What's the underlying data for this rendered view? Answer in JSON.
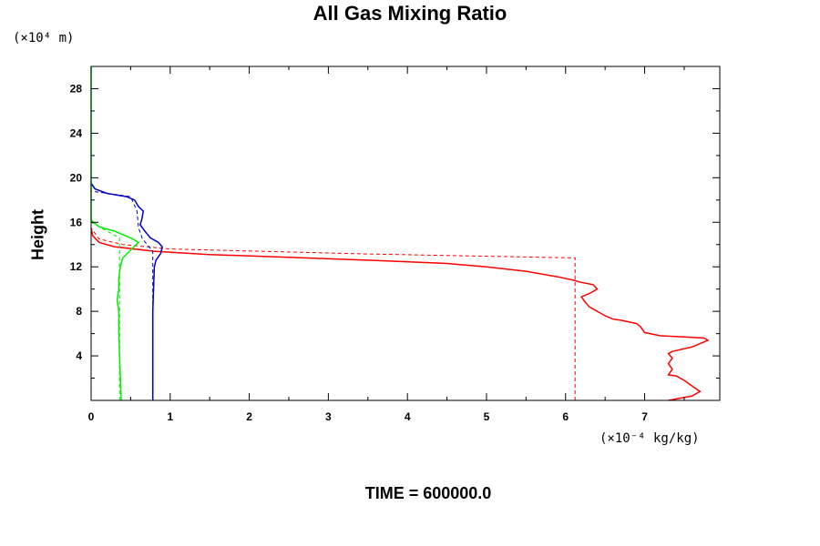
{
  "title": "All Gas Mixing Ratio",
  "y_unit": "(×10⁴ m)",
  "x_unit": "(×10⁻⁴ kg/kg)",
  "ylabel": "Height",
  "time_label": "TIME = 600000.0",
  "chart_data": {
    "type": "line",
    "title": "All Gas Mixing Ratio",
    "xlabel": "",
    "ylabel": "Height",
    "x_unit": "(×10⁻⁴ kg/kg)",
    "y_unit": "(×10⁴ m)",
    "xlim": [
      0,
      7.95
    ],
    "ylim": [
      0,
      30
    ],
    "x_ticks": [
      0,
      1,
      2,
      3,
      4,
      5,
      6,
      7
    ],
    "y_ticks": [
      4,
      8,
      12,
      16,
      20,
      24,
      28
    ],
    "grid": false,
    "series": [
      {
        "color": "#ff0000",
        "style": "solid",
        "points": [
          [
            7.3,
            0.0
          ],
          [
            7.6,
            0.4
          ],
          [
            7.7,
            0.8
          ],
          [
            7.6,
            1.3
          ],
          [
            7.5,
            1.8
          ],
          [
            7.4,
            2.2
          ],
          [
            7.3,
            2.3
          ],
          [
            7.35,
            2.8
          ],
          [
            7.3,
            3.3
          ],
          [
            7.35,
            3.8
          ],
          [
            7.3,
            4.2
          ],
          [
            7.35,
            4.4
          ],
          [
            7.6,
            4.8
          ],
          [
            7.8,
            5.4
          ],
          [
            7.75,
            5.6
          ],
          [
            7.5,
            5.7
          ],
          [
            7.2,
            5.8
          ],
          [
            7.0,
            6.1
          ],
          [
            6.95,
            6.6
          ],
          [
            6.9,
            6.9
          ],
          [
            6.7,
            7.2
          ],
          [
            6.6,
            7.3
          ],
          [
            6.5,
            7.6
          ],
          [
            6.4,
            8.0
          ],
          [
            6.3,
            8.4
          ],
          [
            6.25,
            8.8
          ],
          [
            6.2,
            9.3
          ],
          [
            6.3,
            9.6
          ],
          [
            6.4,
            10.0
          ],
          [
            6.35,
            10.4
          ],
          [
            6.2,
            10.6
          ],
          [
            6.1,
            10.8
          ],
          [
            5.9,
            11.1
          ],
          [
            5.5,
            11.6
          ],
          [
            5.0,
            12.0
          ],
          [
            4.5,
            12.3
          ],
          [
            3.5,
            12.6
          ],
          [
            2.5,
            12.85
          ],
          [
            1.5,
            13.1
          ],
          [
            0.8,
            13.4
          ],
          [
            0.3,
            13.8
          ],
          [
            0.1,
            14.2
          ],
          [
            0.02,
            14.8
          ],
          [
            0.0,
            15.5
          ]
        ]
      },
      {
        "color": "#ff0000",
        "style": "dashed",
        "points": [
          [
            6.12,
            0.0
          ],
          [
            6.12,
            10.8
          ],
          [
            6.12,
            12.8
          ],
          [
            3.5,
            13.15
          ],
          [
            1.0,
            13.6
          ],
          [
            0.4,
            14.0
          ],
          [
            0.1,
            14.5
          ],
          [
            0.0,
            15.5
          ]
        ]
      },
      {
        "color": "#0000cc",
        "style": "solid",
        "points": [
          [
            0.78,
            0.0
          ],
          [
            0.78,
            4.0
          ],
          [
            0.78,
            8.0
          ],
          [
            0.8,
            12.0
          ],
          [
            0.82,
            12.6
          ],
          [
            0.88,
            13.2
          ],
          [
            0.9,
            13.8
          ],
          [
            0.85,
            14.2
          ],
          [
            0.75,
            14.6
          ],
          [
            0.68,
            15.2
          ],
          [
            0.62,
            15.8
          ],
          [
            0.64,
            16.2
          ],
          [
            0.66,
            17.0
          ],
          [
            0.6,
            17.4
          ],
          [
            0.55,
            18.0
          ],
          [
            0.45,
            18.3
          ],
          [
            0.2,
            18.6
          ],
          [
            0.05,
            19.0
          ],
          [
            0.0,
            19.5
          ]
        ]
      },
      {
        "color": "#0000cc",
        "style": "dashed",
        "points": [
          [
            0.78,
            0.0
          ],
          [
            0.78,
            8.0
          ],
          [
            0.78,
            13.4
          ],
          [
            0.65,
            14.5
          ],
          [
            0.6,
            15.5
          ],
          [
            0.58,
            17.0
          ],
          [
            0.5,
            18.3
          ],
          [
            0.0,
            18.8
          ]
        ]
      },
      {
        "color": "#00ee00",
        "style": "solid",
        "points": [
          [
            0.38,
            0.0
          ],
          [
            0.37,
            2.0
          ],
          [
            0.36,
            4.0
          ],
          [
            0.35,
            6.0
          ],
          [
            0.35,
            8.0
          ],
          [
            0.33,
            9.0
          ],
          [
            0.35,
            10.0
          ],
          [
            0.35,
            11.0
          ],
          [
            0.37,
            12.0
          ],
          [
            0.4,
            12.8
          ],
          [
            0.5,
            13.5
          ],
          [
            0.6,
            14.2
          ],
          [
            0.5,
            14.6
          ],
          [
            0.3,
            15.2
          ],
          [
            0.1,
            15.6
          ],
          [
            0.0,
            16.2
          ]
        ]
      },
      {
        "color": "#00ee00",
        "style": "dashed",
        "points": [
          [
            0.36,
            0.0
          ],
          [
            0.36,
            8.0
          ],
          [
            0.36,
            14.6
          ],
          [
            0.1,
            15.6
          ],
          [
            0.0,
            16.0
          ]
        ]
      },
      {
        "color": "#00ee00",
        "style": "solid",
        "points": [
          [
            0.0,
            16.2
          ],
          [
            0.0,
            30.0
          ]
        ]
      }
    ]
  }
}
